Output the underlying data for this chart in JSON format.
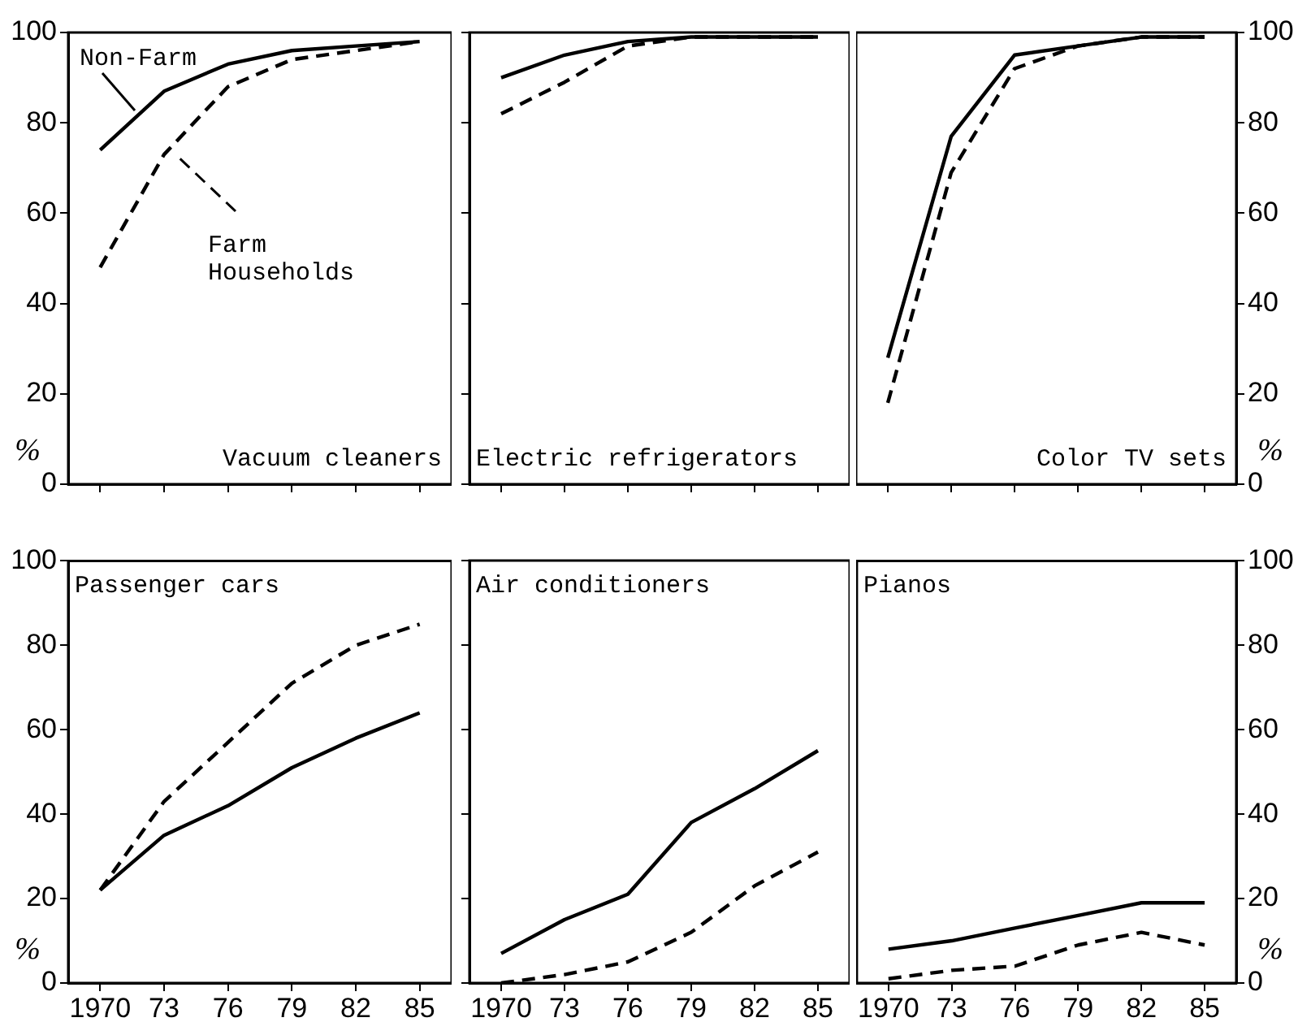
{
  "chart_data": [
    {
      "type": "line",
      "title": "Vacuum cleaners",
      "ylabel": "%",
      "categories": [
        "1970",
        "73",
        "76",
        "79",
        "82",
        "85"
      ],
      "ylim": [
        0,
        100
      ],
      "yticks": [
        0,
        20,
        40,
        60,
        80,
        100
      ],
      "tick_labels": "y",
      "marker": "none",
      "grid": false,
      "series": [
        {
          "name": "Non-Farm",
          "color": "#000000",
          "line_style": "solid",
          "values": [
            74,
            87,
            93,
            96,
            97,
            98
          ]
        },
        {
          "name": "Farm Households",
          "color": "#000000",
          "line_style": "dashed",
          "values": [
            48,
            73,
            88,
            94,
            96,
            98
          ]
        }
      ]
    },
    {
      "type": "line",
      "title": "Electric refrigerators",
      "categories": [
        "1970",
        "73",
        "76",
        "79",
        "82",
        "85"
      ],
      "ylim": [
        0,
        100
      ],
      "yticks": [
        0,
        20,
        40,
        60,
        80,
        100
      ],
      "tick_labels": false,
      "marker": "none",
      "grid": false,
      "series": [
        {
          "color": "#000000",
          "line_style": "solid",
          "values": [
            90,
            95,
            98,
            99,
            99,
            99
          ]
        },
        {
          "color": "#000000",
          "line_style": "dashed",
          "values": [
            82,
            89,
            97,
            99,
            99,
            99
          ]
        }
      ]
    },
    {
      "type": "line",
      "title": "Color TV sets",
      "y2label": "%",
      "categories": [
        "1970",
        "73",
        "76",
        "79",
        "82",
        "85"
      ],
      "y2lim": [
        0,
        100
      ],
      "y2ticks": [
        0,
        20,
        40,
        60,
        80,
        100
      ],
      "tick_labels": "y",
      "marker": "none",
      "grid": false,
      "series": [
        {
          "color": "#000000",
          "line_style": "solid",
          "axis": "y2",
          "values": [
            28,
            77,
            95,
            97,
            99,
            99
          ]
        },
        {
          "color": "#000000",
          "line_style": "dashed",
          "axis": "y2",
          "values": [
            18,
            69,
            92,
            97,
            99,
            99
          ]
        }
      ]
    },
    {
      "type": "line",
      "title": "Passenger cars",
      "ylabel": "%",
      "categories": [
        "1970",
        "73",
        "76",
        "79",
        "82",
        "85"
      ],
      "ylim": [
        0,
        100
      ],
      "yticks": [
        0,
        20,
        40,
        60,
        80,
        100
      ],
      "marker": "none",
      "grid": false,
      "series": [
        {
          "color": "#000000",
          "line_style": "solid",
          "values": [
            22,
            35,
            42,
            51,
            58,
            64
          ]
        },
        {
          "color": "#000000",
          "line_style": "dashed",
          "values": [
            22,
            43,
            57,
            71,
            80,
            85
          ]
        }
      ]
    },
    {
      "type": "line",
      "title": "Air conditioners",
      "categories": [
        "1970",
        "73",
        "76",
        "79",
        "82",
        "85"
      ],
      "ylim": [
        0,
        100
      ],
      "yticks": [
        0,
        20,
        40,
        60,
        80,
        100
      ],
      "tick_labels": "x",
      "marker": "none",
      "grid": false,
      "series": [
        {
          "color": "#000000",
          "line_style": "solid",
          "values": [
            7,
            15,
            21,
            38,
            46,
            55
          ]
        },
        {
          "color": "#000000",
          "line_style": "dashed",
          "values": [
            0,
            2,
            5,
            12,
            23,
            31
          ]
        }
      ]
    },
    {
      "type": "line",
      "title": "Pianos",
      "y2label": "%",
      "categories": [
        "1970",
        "73",
        "76",
        "79",
        "82",
        "85"
      ],
      "y2lim": [
        0,
        100
      ],
      "y2ticks": [
        0,
        20,
        40,
        60,
        80,
        100
      ],
      "marker": "none",
      "grid": false,
      "series": [
        {
          "color": "#000000",
          "line_style": "solid",
          "axis": "y2",
          "values": [
            8,
            10,
            13,
            16,
            19,
            19
          ]
        },
        {
          "color": "#000000",
          "line_style": "dashed",
          "axis": "y2",
          "values": [
            1,
            3,
            4,
            9,
            12,
            9
          ]
        }
      ]
    }
  ]
}
